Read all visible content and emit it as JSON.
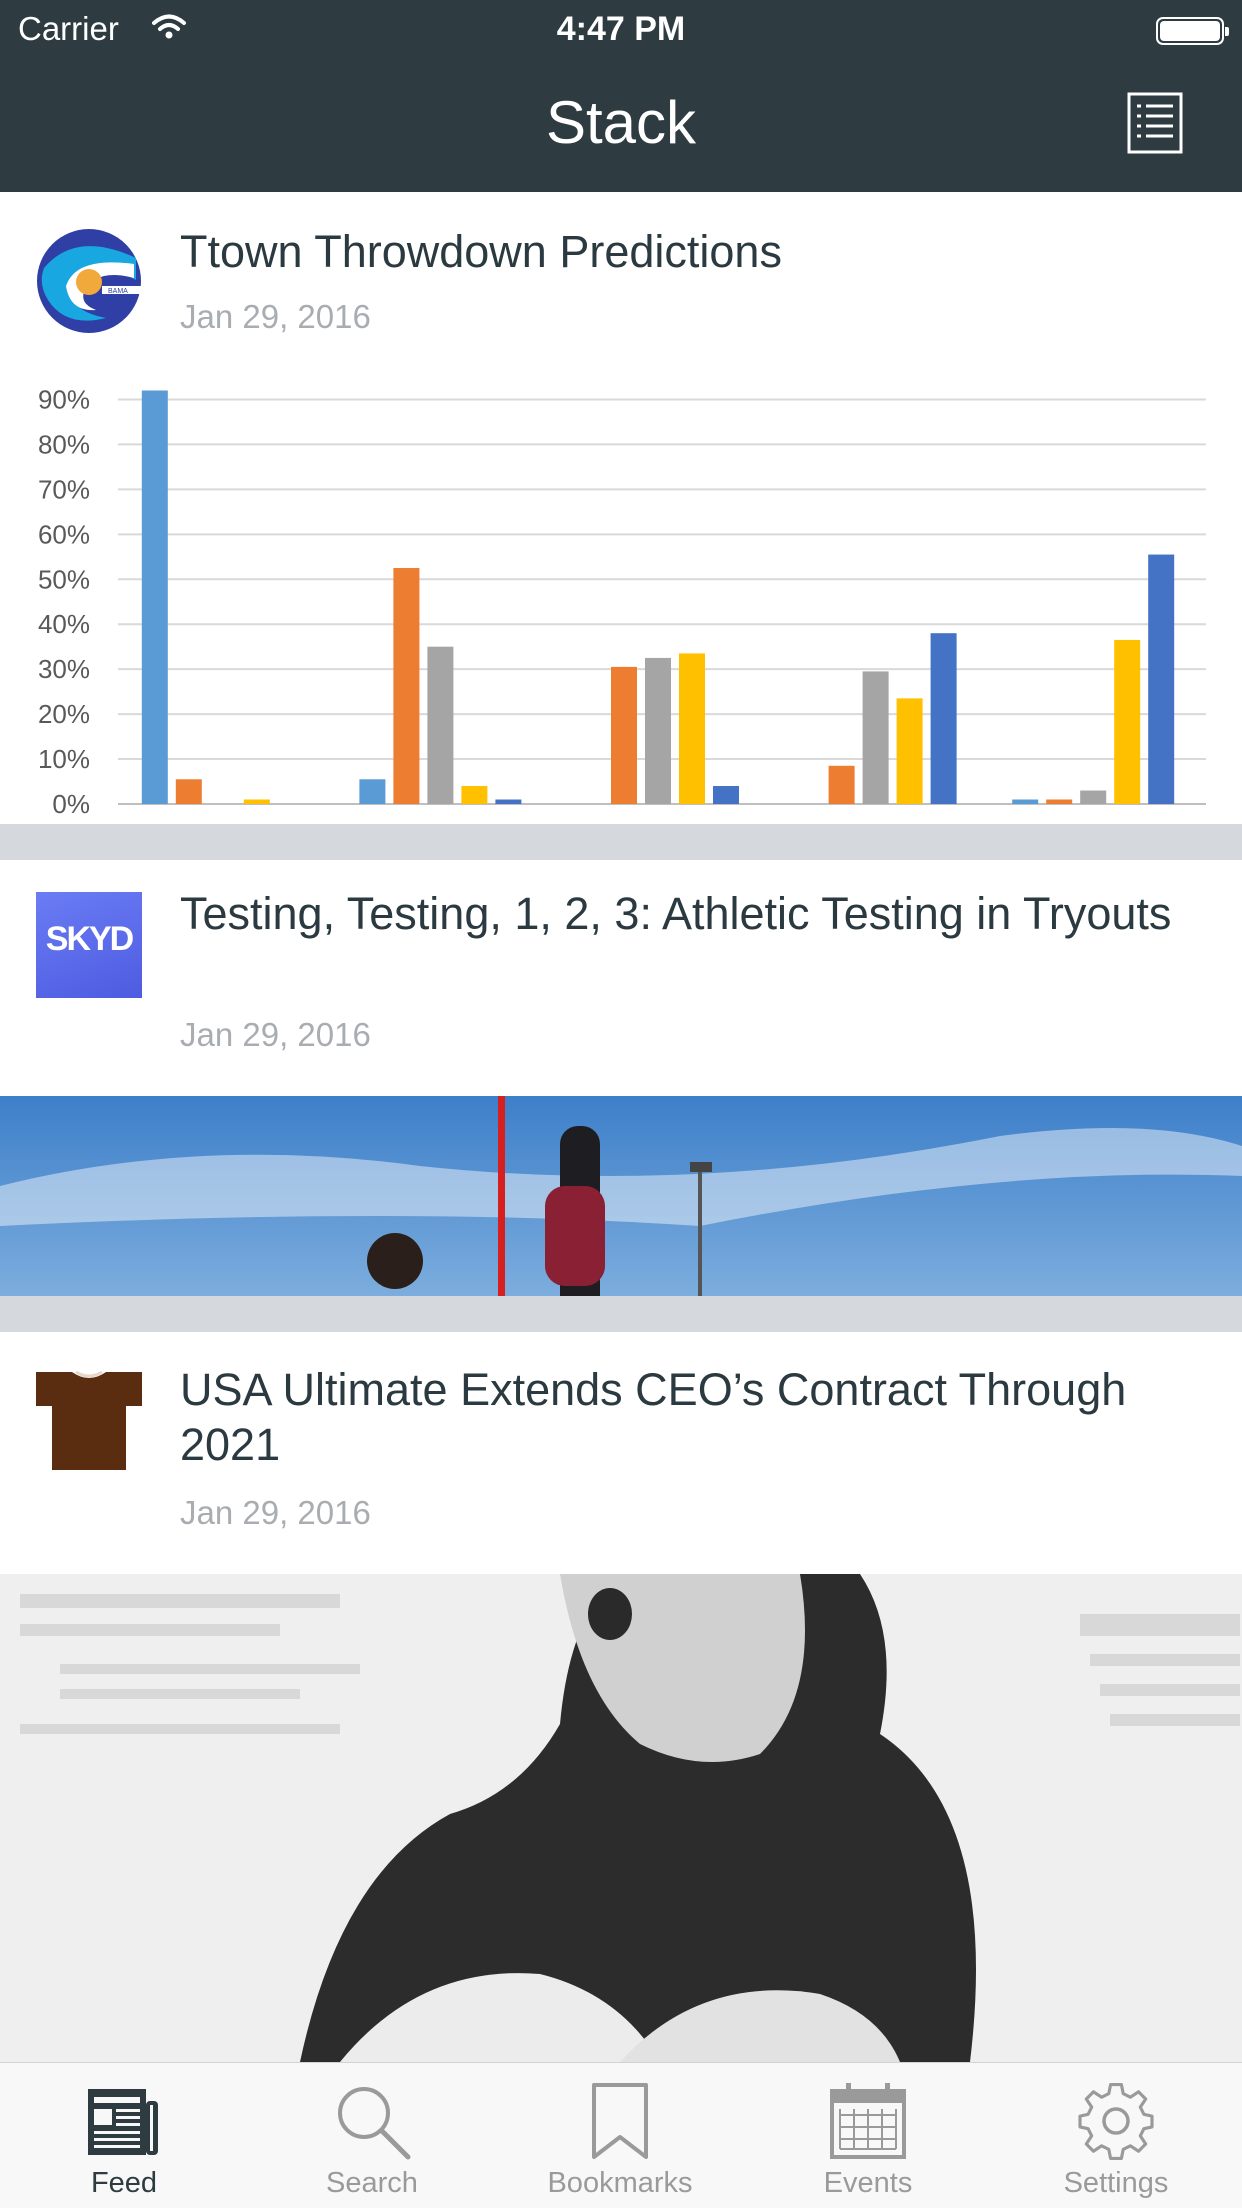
{
  "status_bar": {
    "carrier": "Carrier",
    "time": "4:47 PM"
  },
  "nav": {
    "title": "Stack",
    "right_icon": "list-icon"
  },
  "feed": [
    {
      "title": "Ttown Throwdown Predictions",
      "date": "Jan 29, 2016",
      "logo": "wave-logo",
      "logo_colors": [
        "#2f3fa6",
        "#18a7e0",
        "#f2a93b"
      ]
    },
    {
      "title": "Testing, Testing, 1, 2, 3: Athletic Testing in Tryouts",
      "date": "Jan 29, 2016",
      "logo": "skyd-logo",
      "logo_text": "SKYD"
    },
    {
      "title": "USA Ultimate Extends CEO’s Contract Through 2021",
      "date": "Jan 29, 2016",
      "logo": "tshirt-logo",
      "logo_colors": [
        "#5b2d10"
      ]
    }
  ],
  "chart_data": {
    "type": "bar",
    "y_ticks": [
      "0%",
      "10%",
      "20%",
      "30%",
      "40%",
      "50%",
      "60%",
      "70%",
      "80%",
      "90%"
    ],
    "ylim": [
      0,
      95
    ],
    "grid": true,
    "categories": [
      "",
      "",
      "",
      "",
      ""
    ],
    "series": [
      {
        "color": "#5b9bd5",
        "values": [
          92,
          5.5,
          0,
          0,
          1
        ]
      },
      {
        "color": "#ed7d31",
        "values": [
          5.5,
          52.5,
          30.5,
          8.5,
          1
        ]
      },
      {
        "color": "#a5a5a5",
        "values": [
          0,
          35,
          32.5,
          29.5,
          3
        ]
      },
      {
        "color": "#ffc000",
        "values": [
          1,
          4,
          33.5,
          23.5,
          36.5
        ]
      },
      {
        "color": "#4472c4",
        "values": [
          0,
          1,
          4,
          38,
          55.5
        ]
      }
    ]
  },
  "tabs": [
    {
      "label": "Feed",
      "icon": "newspaper-icon",
      "active": true
    },
    {
      "label": "Search",
      "icon": "search-icon",
      "active": false
    },
    {
      "label": "Bookmarks",
      "icon": "bookmark-icon",
      "active": false
    },
    {
      "label": "Events",
      "icon": "calendar-icon",
      "active": false
    },
    {
      "label": "Settings",
      "icon": "gear-icon",
      "active": false
    }
  ]
}
